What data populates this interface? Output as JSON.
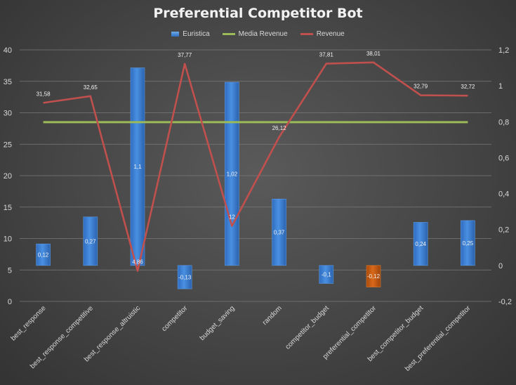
{
  "chart_data": {
    "type": "bar",
    "title": "Preferential Competitor Bot",
    "categories": [
      "best_response",
      "best_response_competitive",
      "best_response_altruistic",
      "competitor",
      "budget_saving",
      "random",
      "competitor_budget",
      "preferential_competitor",
      "best_competitor_budget",
      "best_preferential_competitor"
    ],
    "series": [
      {
        "name": "Euristica",
        "type": "bar",
        "axis": "right",
        "values": [
          0.12,
          0.27,
          1.1,
          -0.13,
          1.02,
          0.37,
          -0.1,
          -0.12,
          0.24,
          0.25
        ],
        "labels": [
          "0,12",
          "0,27",
          "1,1",
          "-0,13",
          "1,02",
          "0,37",
          "-0,1",
          "-0,12",
          "0,24",
          "0,25"
        ],
        "highlight_index": 7
      },
      {
        "name": "Media Revenue",
        "type": "line",
        "axis": "left",
        "values": [
          28.5,
          28.5,
          28.5,
          28.5,
          28.5,
          28.5,
          28.5,
          28.5,
          28.5,
          28.5
        ]
      },
      {
        "name": "Revenue",
        "type": "line",
        "axis": "left",
        "values": [
          31.58,
          32.65,
          4.86,
          37.77,
          12,
          26.12,
          37.81,
          38.01,
          32.79,
          32.72
        ],
        "labels": [
          "31,58",
          "32,65",
          "4,86",
          "37,77",
          "12",
          "26,12",
          "37,81",
          "38,01",
          "32,79",
          "32,72"
        ]
      }
    ],
    "y_left": {
      "ylim": [
        0,
        40
      ],
      "ticks": [
        "0",
        "5",
        "10",
        "15",
        "20",
        "25",
        "30",
        "35",
        "40"
      ]
    },
    "y_right": {
      "ylim": [
        -0.2,
        1.2
      ],
      "ticks": [
        "-0,2",
        "0",
        "0,2",
        "0,4",
        "0,6",
        "0,8",
        "1",
        "1,2"
      ]
    },
    "grid": true,
    "legend_position": "top",
    "colors": {
      "bar": "#3e82d4",
      "bar_highlight": "#c55a11",
      "media_revenue": "#9bbb59",
      "revenue": "#c0504d",
      "grid": "#7a7a7a",
      "text": "#d9d9d9"
    }
  }
}
